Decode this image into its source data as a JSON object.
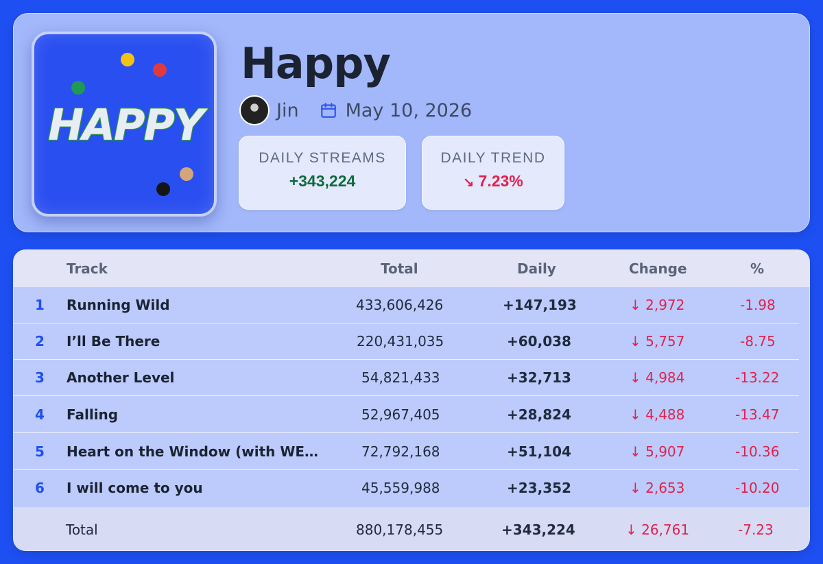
{
  "album": {
    "title": "Happy",
    "cover_text": "HAPPY",
    "artist": "Jin",
    "date": "May 10, 2026"
  },
  "stats": {
    "daily_streams_label": "DAILY STREAMS",
    "daily_streams_value": "+343,224",
    "daily_trend_label": "DAILY TREND",
    "daily_trend_arrow": "↘",
    "daily_trend_value": "7.23%"
  },
  "table": {
    "headers": {
      "track": "Track",
      "total": "Total",
      "daily": "Daily",
      "change": "Change",
      "pct": "%"
    },
    "rows": [
      {
        "rank": "1",
        "track": "Running Wild",
        "total": "433,606,426",
        "daily": "+147,193",
        "change": "↓ 2,972",
        "pct": "-1.98"
      },
      {
        "rank": "2",
        "track": "I’ll Be There",
        "total": "220,431,035",
        "daily": "+60,038",
        "change": "↓ 5,757",
        "pct": "-8.75"
      },
      {
        "rank": "3",
        "track": "Another Level",
        "total": "54,821,433",
        "daily": "+32,713",
        "change": "↓ 4,984",
        "pct": "-13.22"
      },
      {
        "rank": "4",
        "track": "Falling",
        "total": "52,967,405",
        "daily": "+28,824",
        "change": "↓ 4,488",
        "pct": "-13.47"
      },
      {
        "rank": "5",
        "track": "Heart on the Window (with WE…",
        "total": "72,792,168",
        "daily": "+51,104",
        "change": "↓ 5,907",
        "pct": "-10.36"
      },
      {
        "rank": "6",
        "track": "I will come to you",
        "total": "45,559,988",
        "daily": "+23,352",
        "change": "↓ 2,653",
        "pct": "-10.20"
      }
    ],
    "footer": {
      "label": "Total",
      "total": "880,178,455",
      "daily": "+343,224",
      "change": "↓ 26,761",
      "pct": "-7.23"
    }
  },
  "colors": {
    "background": "#1e4ff2",
    "positive": "#0f6a3c",
    "negative": "#e0224e",
    "rank": "#1e4ff2"
  },
  "icons": {
    "calendar": "calendar-icon",
    "trend_down": "trend-down-icon",
    "change_arrow": "arrow-down-icon"
  }
}
